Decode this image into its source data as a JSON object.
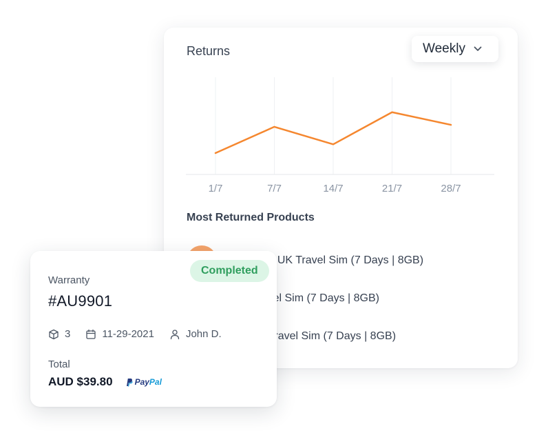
{
  "returns": {
    "title": "Returns",
    "period": "Weekly",
    "section_title": "Most Returned Products",
    "products": [
      {
        "thumb_text": "OO",
        "name": "Europe 3: UK Travel Sim (7 Days | 8GB)"
      },
      {
        "thumb_text": "",
        "name": "USA Travel Sim (7 Days | 8GB)"
      },
      {
        "thumb_text": "",
        "name": "Canada Travel Sim (7 Days | 8GB)"
      }
    ]
  },
  "chart_data": {
    "type": "line",
    "categories": [
      "1/7",
      "7/7",
      "14/7",
      "21/7",
      "28/7"
    ],
    "series": [
      {
        "values": [
          22,
          49,
          31,
          64,
          51
        ],
        "color": "#f5872f"
      }
    ],
    "ylim": [
      0,
      100
    ],
    "grid": "vertical",
    "title": "",
    "xlabel": "",
    "ylabel": ""
  },
  "warranty": {
    "status": "Completed",
    "label": "Warranty",
    "id": "#AU9901",
    "quantity": "3",
    "date": "11-29-2021",
    "customer": "John D.",
    "total_label": "Total",
    "total_amount": "AUD $39.80",
    "payment": {
      "part1": "Pay",
      "part2": "Pal"
    }
  },
  "colors": {
    "accent_line": "#f5872f",
    "badge_bg": "#dcf5e6",
    "badge_text": "#2f9e5e"
  }
}
